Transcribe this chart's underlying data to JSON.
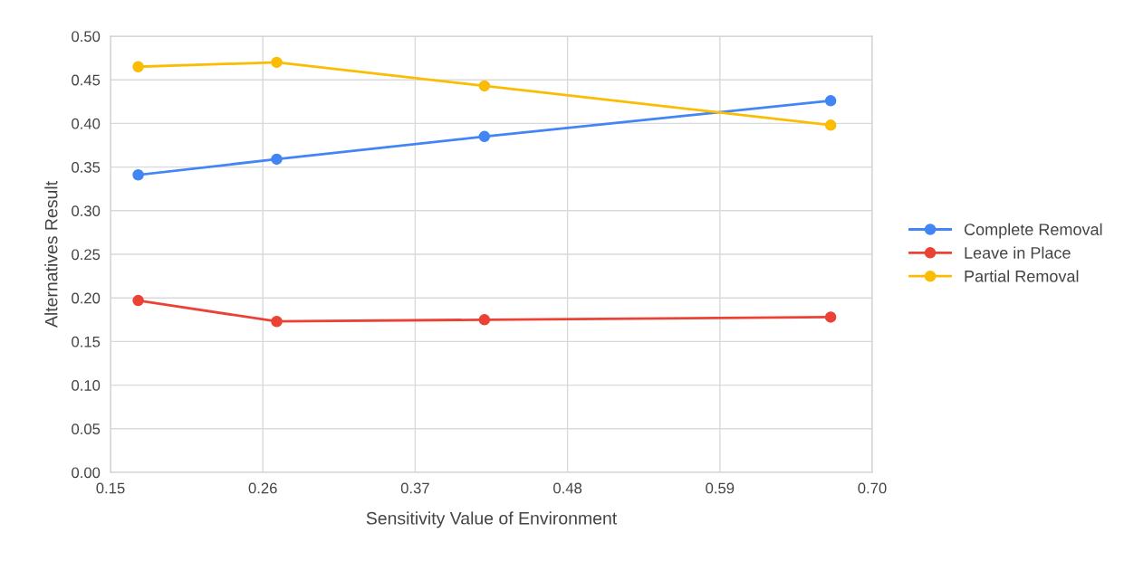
{
  "chart_data": {
    "type": "line",
    "xlabel": "Sensitivity Value of Environment",
    "ylabel": "Alternatives Result",
    "x": [
      0.17,
      0.27,
      0.42,
      0.67
    ],
    "series": [
      {
        "name": "Complete Removal",
        "color": "#4285f4",
        "values": [
          0.341,
          0.359,
          0.385,
          0.426
        ]
      },
      {
        "name": "Leave in Place",
        "color": "#ea4335",
        "values": [
          0.197,
          0.173,
          0.175,
          0.178
        ]
      },
      {
        "name": "Partial Removal",
        "color": "#fbbc04",
        "values": [
          0.465,
          0.47,
          0.443,
          0.398
        ]
      }
    ],
    "xlim": [
      0.15,
      0.7
    ],
    "xticks": [
      0.15,
      0.26,
      0.37,
      0.48,
      0.59,
      {
        "value": 0.7,
        "label": "0.70"
      }
    ],
    "ylim": [
      0,
      0.5
    ],
    "yticks": [
      {
        "value": 0,
        "label": "0.00"
      },
      0.05,
      {
        "value": 0.1,
        "label": "0.10"
      },
      0.15,
      {
        "value": 0.2,
        "label": "0.20"
      },
      0.25,
      {
        "value": 0.3,
        "label": "0.30"
      },
      0.35,
      {
        "value": 0.4,
        "label": "0.40"
      },
      0.45,
      {
        "value": 0.5,
        "label": "0.50"
      }
    ],
    "grid": true,
    "legend": "right",
    "marker": "circle",
    "line_style": "solid"
  }
}
